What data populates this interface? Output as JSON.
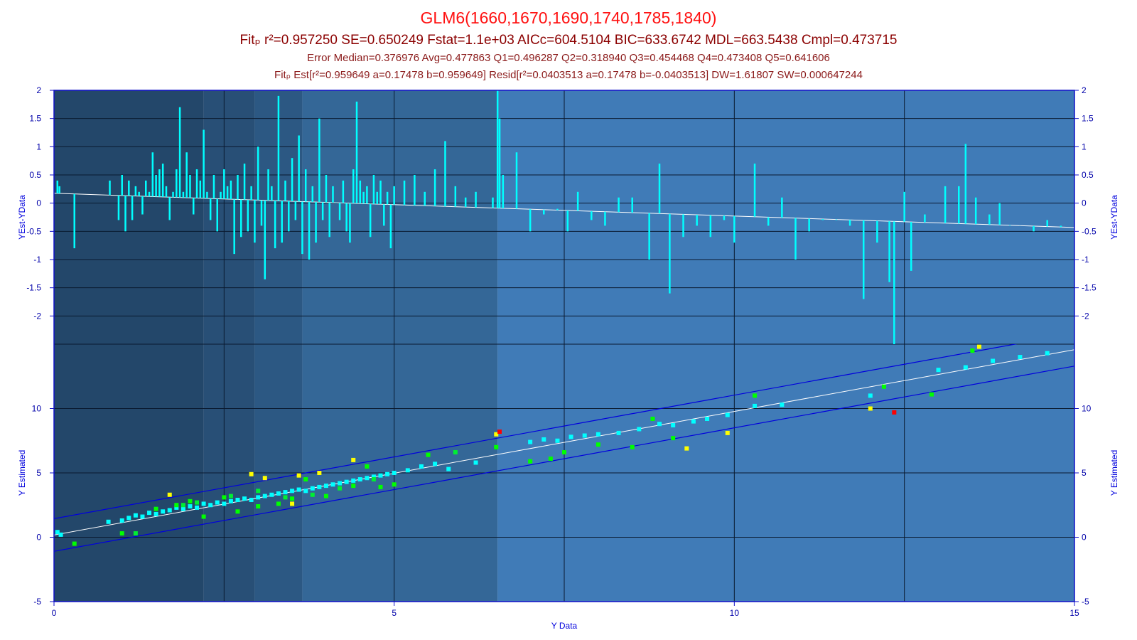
{
  "header": {
    "title": "GLM6(1660,1670,1690,1740,1785,1840)",
    "line1": "Fitₚ r²=0.957250 SE=0.650249 Fstat=1.1e+03 AICc=604.5104 BIC=633.6742 MDL=663.5438 Cmpl=0.473715",
    "line2": "Error Median=0.376976 Avg=0.477863 Q1=0.496287 Q2=0.318940 Q3=0.454468 Q4=0.473408 Q5=0.641606",
    "line3": "Fitₚ Est[r²=0.959649 a=0.17478 b=0.959649] Resid[r²=0.0403513 a=0.17478 b=-0.0403513] DW=1.61807 SW=0.000647244"
  },
  "colors": {
    "plot_border": "#1010c8",
    "title": "#ff1010",
    "stats": "#8b0000",
    "bands": [
      "#23476a",
      "#284f76",
      "#2c5883",
      "#346797",
      "#3d77b1",
      "#437fbc"
    ],
    "residual_bar": "#00ffff",
    "fit_line": "#ffffff",
    "ci_line": "#0000dd",
    "point_q1": "#00ffff",
    "point_q2": "#00ff00",
    "point_q3": "#00ee33",
    "point_q4": "#ffff00",
    "point_q5": "#ff0000"
  },
  "chart_data": [
    {
      "type": "bar",
      "panel": "residuals",
      "ylabel": "YEst-YData",
      "ylabel_right": "YEst-YData",
      "xlim": [
        0,
        15
      ],
      "ylim": [
        -2.5,
        2
      ],
      "yticks": [
        "2",
        "1.5",
        "1",
        "0.5",
        "0",
        "-0.5",
        "-1",
        "-1.5",
        "-2"
      ],
      "ytick_values": [
        2,
        1.5,
        1,
        0.5,
        0,
        -0.5,
        -1,
        -1.5,
        -2
      ],
      "grid": true,
      "background_bands_x": [
        0,
        2.2,
        2.95,
        3.65,
        6.52,
        15
      ],
      "trend": {
        "a": 0.17478,
        "b": -0.0403513
      },
      "residuals": [
        [
          0.05,
          0.4
        ],
        [
          0.08,
          0.3
        ],
        [
          0.3,
          -0.8
        ],
        [
          0.82,
          0.4
        ],
        [
          0.95,
          -0.3
        ],
        [
          1.0,
          0.5
        ],
        [
          1.05,
          -0.5
        ],
        [
          1.1,
          0.4
        ],
        [
          1.15,
          -0.3
        ],
        [
          1.2,
          0.3
        ],
        [
          1.25,
          0.2
        ],
        [
          1.3,
          -0.2
        ],
        [
          1.35,
          0.4
        ],
        [
          1.4,
          0.2
        ],
        [
          1.45,
          0.9
        ],
        [
          1.5,
          0.5
        ],
        [
          1.55,
          0.6
        ],
        [
          1.6,
          0.7
        ],
        [
          1.65,
          0.3
        ],
        [
          1.7,
          -0.3
        ],
        [
          1.75,
          0.2
        ],
        [
          1.8,
          0.6
        ],
        [
          1.85,
          1.7
        ],
        [
          1.9,
          0.2
        ],
        [
          1.95,
          0.9
        ],
        [
          2.0,
          0.5
        ],
        [
          2.05,
          -0.2
        ],
        [
          2.1,
          0.6
        ],
        [
          2.15,
          0.4
        ],
        [
          2.2,
          1.3
        ],
        [
          2.25,
          0.2
        ],
        [
          2.3,
          -0.3
        ],
        [
          2.35,
          0.5
        ],
        [
          2.4,
          -0.5
        ],
        [
          2.45,
          0.2
        ],
        [
          2.5,
          0.6
        ],
        [
          2.55,
          0.3
        ],
        [
          2.6,
          0.4
        ],
        [
          2.65,
          -0.9
        ],
        [
          2.7,
          0.5
        ],
        [
          2.75,
          -0.6
        ],
        [
          2.8,
          0.7
        ],
        [
          2.85,
          -0.5
        ],
        [
          2.9,
          0.3
        ],
        [
          2.95,
          -0.7
        ],
        [
          3.0,
          1.0
        ],
        [
          3.05,
          -0.4
        ],
        [
          3.1,
          -1.35
        ],
        [
          3.15,
          0.6
        ],
        [
          3.2,
          0.3
        ],
        [
          3.25,
          -0.8
        ],
        [
          3.3,
          1.9
        ],
        [
          3.35,
          -0.7
        ],
        [
          3.4,
          0.4
        ],
        [
          3.45,
          -0.5
        ],
        [
          3.5,
          0.8
        ],
        [
          3.55,
          -0.3
        ],
        [
          3.6,
          1.2
        ],
        [
          3.65,
          -0.9
        ],
        [
          3.7,
          0.6
        ],
        [
          3.75,
          -1.0
        ],
        [
          3.8,
          0.3
        ],
        [
          3.85,
          -0.7
        ],
        [
          3.9,
          1.5
        ],
        [
          3.95,
          -0.3
        ],
        [
          4.0,
          0.5
        ],
        [
          4.05,
          -0.6
        ],
        [
          4.1,
          0.3
        ],
        [
          4.15,
          0.0
        ],
        [
          4.2,
          -0.3
        ],
        [
          4.25,
          0.4
        ],
        [
          4.3,
          -0.5
        ],
        [
          4.35,
          -0.7
        ],
        [
          4.4,
          0.6
        ],
        [
          4.45,
          1.8
        ],
        [
          4.5,
          0.4
        ],
        [
          4.55,
          0.2
        ],
        [
          4.6,
          0.3
        ],
        [
          4.65,
          -0.6
        ],
        [
          4.7,
          0.5
        ],
        [
          4.75,
          0.2
        ],
        [
          4.8,
          0.4
        ],
        [
          4.85,
          -0.4
        ],
        [
          4.9,
          0.2
        ],
        [
          4.95,
          -0.8
        ],
        [
          5.0,
          0.3
        ],
        [
          5.15,
          0.4
        ],
        [
          5.3,
          0.5
        ],
        [
          5.45,
          0.2
        ],
        [
          5.6,
          0.6
        ],
        [
          5.75,
          1.1
        ],
        [
          5.9,
          0.3
        ],
        [
          6.05,
          0.1
        ],
        [
          6.2,
          0.2
        ],
        [
          6.45,
          0.1
        ],
        [
          6.52,
          2.0
        ],
        [
          6.55,
          1.5
        ],
        [
          6.6,
          0.5
        ],
        [
          6.8,
          0.9
        ],
        [
          7.0,
          -0.5
        ],
        [
          7.2,
          -0.2
        ],
        [
          7.4,
          -0.1
        ],
        [
          7.55,
          -0.5
        ],
        [
          7.7,
          0.2
        ],
        [
          7.9,
          -0.3
        ],
        [
          8.1,
          -0.4
        ],
        [
          8.3,
          0.1
        ],
        [
          8.5,
          0.1
        ],
        [
          8.75,
          -1.0
        ],
        [
          8.9,
          0.7
        ],
        [
          9.05,
          -1.6
        ],
        [
          9.25,
          -0.6
        ],
        [
          9.45,
          -0.4
        ],
        [
          9.65,
          -0.6
        ],
        [
          9.85,
          -0.3
        ],
        [
          10.0,
          -0.7
        ],
        [
          10.3,
          0.7
        ],
        [
          10.5,
          -0.4
        ],
        [
          10.7,
          0.1
        ],
        [
          10.9,
          -1.0
        ],
        [
          11.1,
          -0.5
        ],
        [
          11.3,
          -0.3
        ],
        [
          11.5,
          -0.3
        ],
        [
          11.7,
          -0.4
        ],
        [
          11.9,
          -1.7
        ],
        [
          12.1,
          -0.7
        ],
        [
          12.28,
          -1.4
        ],
        [
          12.35,
          -2.5
        ],
        [
          12.5,
          0.2
        ],
        [
          12.6,
          -1.2
        ],
        [
          12.8,
          -0.2
        ],
        [
          13.1,
          0.3
        ],
        [
          13.3,
          0.3
        ],
        [
          13.4,
          1.05
        ],
        [
          13.55,
          0.1
        ],
        [
          13.75,
          -0.2
        ],
        [
          13.9,
          0.0
        ],
        [
          14.05,
          -0.4
        ],
        [
          14.2,
          -0.4
        ],
        [
          14.4,
          -0.5
        ],
        [
          14.6,
          -0.3
        ],
        [
          14.8,
          -0.4
        ]
      ]
    },
    {
      "type": "scatter",
      "panel": "estimated_vs_data",
      "xlabel": "Y Data",
      "ylabel": "Y Estimated",
      "ylabel_right": "Y Estimated",
      "xlim": [
        0,
        15
      ],
      "ylim": [
        -5,
        15
      ],
      "xticks": [
        "0",
        "5",
        "10",
        "15"
      ],
      "xtick_values": [
        0,
        5,
        10,
        15
      ],
      "yticks": [
        "10",
        "5",
        "0",
        "-5"
      ],
      "ytick_values": [
        10,
        5,
        0,
        -5
      ],
      "grid": true,
      "fit": {
        "a": 0.17478,
        "b": 0.959649
      },
      "ci_offset": 1.27,
      "points": {
        "q1": [
          [
            0.05,
            0.4
          ],
          [
            0.1,
            0.2
          ],
          [
            0.8,
            1.2
          ],
          [
            1.0,
            1.3
          ],
          [
            1.1,
            1.5
          ],
          [
            1.2,
            1.7
          ],
          [
            1.3,
            1.6
          ],
          [
            1.4,
            1.9
          ],
          [
            1.5,
            1.8
          ],
          [
            1.6,
            2.0
          ],
          [
            1.7,
            2.1
          ],
          [
            1.8,
            2.3
          ],
          [
            1.9,
            2.2
          ],
          [
            2.0,
            2.4
          ],
          [
            2.1,
            2.3
          ],
          [
            2.2,
            2.6
          ],
          [
            2.3,
            2.5
          ],
          [
            2.4,
            2.7
          ],
          [
            2.5,
            2.6
          ],
          [
            2.6,
            2.8
          ],
          [
            2.7,
            2.9
          ],
          [
            2.8,
            3.0
          ],
          [
            2.9,
            2.9
          ],
          [
            3.0,
            3.1
          ],
          [
            3.1,
            3.2
          ],
          [
            3.2,
            3.3
          ],
          [
            3.3,
            3.4
          ],
          [
            3.4,
            3.5
          ],
          [
            3.5,
            3.6
          ],
          [
            3.6,
            3.7
          ],
          [
            3.7,
            3.6
          ],
          [
            3.8,
            3.8
          ],
          [
            3.9,
            3.9
          ],
          [
            4.0,
            4.0
          ],
          [
            4.1,
            4.1
          ],
          [
            4.2,
            4.2
          ],
          [
            4.3,
            4.3
          ],
          [
            4.4,
            4.4
          ],
          [
            4.5,
            4.5
          ],
          [
            4.6,
            4.6
          ],
          [
            4.7,
            4.7
          ],
          [
            4.8,
            4.8
          ],
          [
            4.9,
            4.9
          ],
          [
            5.0,
            5.0
          ],
          [
            5.2,
            5.2
          ],
          [
            5.4,
            5.5
          ],
          [
            5.6,
            5.7
          ],
          [
            5.8,
            5.3
          ],
          [
            6.2,
            5.8
          ],
          [
            7.0,
            7.4
          ],
          [
            7.2,
            7.6
          ],
          [
            7.4,
            7.5
          ],
          [
            7.6,
            7.8
          ],
          [
            7.8,
            7.9
          ],
          [
            8.0,
            8.0
          ],
          [
            8.3,
            8.1
          ],
          [
            8.6,
            8.4
          ],
          [
            8.9,
            8.8
          ],
          [
            9.1,
            8.7
          ],
          [
            9.4,
            9.0
          ],
          [
            9.6,
            9.2
          ],
          [
            9.9,
            9.5
          ],
          [
            10.3,
            10.2
          ],
          [
            10.7,
            10.3
          ],
          [
            12.0,
            11.0
          ],
          [
            13.0,
            13.0
          ],
          [
            13.4,
            13.2
          ],
          [
            13.8,
            13.7
          ],
          [
            14.2,
            14.0
          ],
          [
            14.6,
            14.3
          ]
        ],
        "q2": [
          [
            0.3,
            -0.5
          ],
          [
            1.0,
            0.3
          ],
          [
            1.5,
            2.2
          ],
          [
            1.8,
            2.5
          ],
          [
            2.0,
            2.8
          ],
          [
            2.2,
            1.6
          ],
          [
            2.5,
            3.1
          ],
          [
            2.7,
            2.0
          ],
          [
            3.0,
            2.4
          ],
          [
            3.3,
            2.6
          ],
          [
            3.5,
            3.0
          ],
          [
            3.7,
            4.5
          ],
          [
            4.0,
            3.2
          ],
          [
            4.4,
            4.0
          ],
          [
            4.6,
            5.5
          ],
          [
            4.8,
            3.9
          ],
          [
            5.0,
            4.1
          ],
          [
            5.5,
            6.4
          ],
          [
            6.5,
            7.0
          ],
          [
            7.0,
            5.9
          ],
          [
            7.3,
            6.1
          ],
          [
            7.5,
            6.6
          ],
          [
            8.0,
            7.2
          ],
          [
            8.5,
            7.0
          ],
          [
            8.8,
            9.2
          ],
          [
            9.1,
            7.7
          ],
          [
            10.3,
            11.0
          ],
          [
            12.2,
            11.7
          ],
          [
            12.9,
            11.1
          ],
          [
            13.5,
            14.5
          ]
        ],
        "q3": [
          [
            1.2,
            0.3
          ],
          [
            1.9,
            2.5
          ],
          [
            2.1,
            2.7
          ],
          [
            2.6,
            3.2
          ],
          [
            3.0,
            3.6
          ],
          [
            3.4,
            3.1
          ],
          [
            3.8,
            3.3
          ],
          [
            4.2,
            3.8
          ],
          [
            4.7,
            4.5
          ],
          [
            5.9,
            6.6
          ]
        ],
        "q4": [
          [
            1.7,
            3.3
          ],
          [
            2.9,
            4.9
          ],
          [
            3.1,
            4.6
          ],
          [
            3.5,
            2.6
          ],
          [
            3.6,
            4.8
          ],
          [
            3.9,
            5.0
          ],
          [
            4.4,
            6.0
          ],
          [
            6.5,
            8.0
          ],
          [
            9.3,
            6.9
          ],
          [
            9.9,
            8.1
          ],
          [
            12.0,
            10.0
          ],
          [
            13.6,
            14.8
          ]
        ],
        "q5": [
          [
            6.55,
            8.2
          ],
          [
            12.35,
            9.7
          ]
        ]
      }
    }
  ]
}
